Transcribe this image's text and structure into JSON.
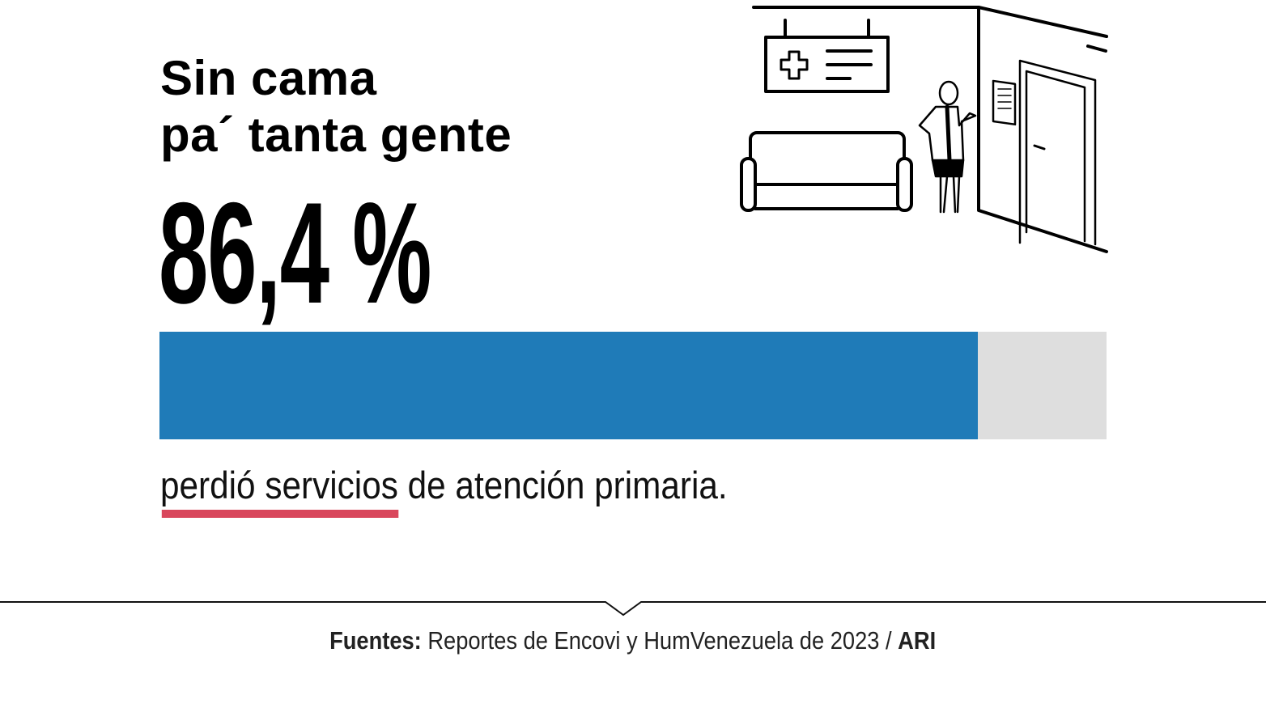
{
  "title": {
    "line1": "Sin cama",
    "line2": "pa´ tanta gente"
  },
  "stat": {
    "value_text": "86,4 %"
  },
  "chart_data": {
    "type": "bar",
    "categories": [
      "perdió servicios de atención primaria"
    ],
    "values": [
      86.4
    ],
    "ylim": [
      0,
      100
    ],
    "unit": "%",
    "fill_color": "#1f7bb8",
    "track_color": "#dedede"
  },
  "subtitle": {
    "highlight": "perdió servicios",
    "rest": " de atención primaria.",
    "highlight_color": "#d9475c"
  },
  "source": {
    "label": "Fuentes:",
    "text": " Reportes de Encovi y HumVenezuela de 2023 / ",
    "credit": "ARI"
  },
  "illustration": {
    "icon": "hospital-waiting-room-illustration"
  }
}
